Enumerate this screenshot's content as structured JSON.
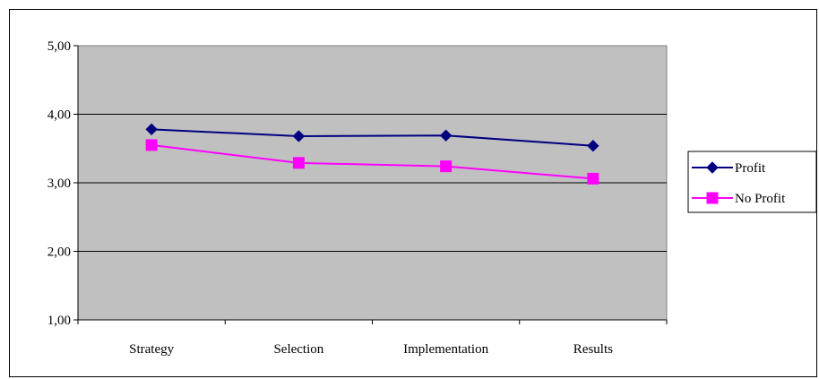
{
  "chart_data": {
    "type": "line",
    "categories": [
      "Strategy",
      "Selection",
      "Implementation",
      "Results"
    ],
    "series": [
      {
        "name": "Profit",
        "values": [
          3.78,
          3.68,
          3.69,
          3.54
        ],
        "color": "#000080",
        "marker": "diamond"
      },
      {
        "name": "No Profit",
        "values": [
          3.55,
          3.29,
          3.24,
          3.06
        ],
        "color": "#ff00ff",
        "marker": "square"
      }
    ],
    "yticks": [
      "5,00",
      "4,00",
      "3,00",
      "2,00",
      "1,00"
    ],
    "ylim": [
      1,
      5
    ],
    "grid": true,
    "plot_background": "#c0c0c0",
    "legend_position": "right"
  }
}
